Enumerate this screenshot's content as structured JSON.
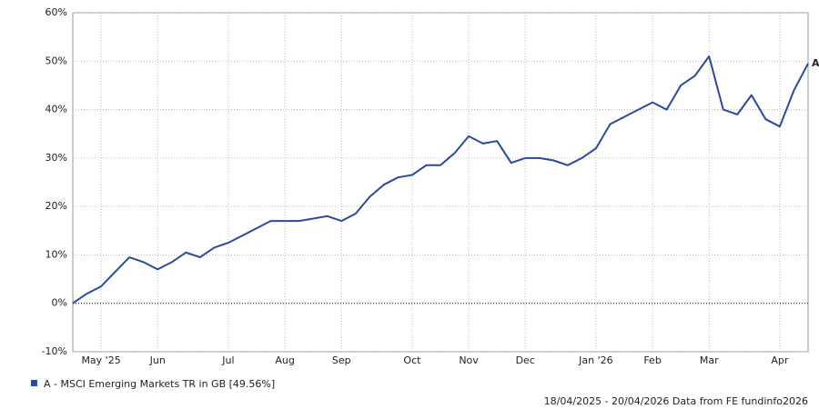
{
  "chart_data": {
    "type": "line",
    "categories": [
      null,
      null,
      "May '25",
      null,
      null,
      null,
      "Jun",
      null,
      null,
      null,
      null,
      "Jul",
      null,
      null,
      null,
      "Aug",
      null,
      null,
      null,
      "Sep",
      null,
      null,
      null,
      null,
      "Oct",
      null,
      null,
      null,
      "Nov",
      null,
      null,
      null,
      "Dec",
      null,
      null,
      null,
      null,
      "Jan '26",
      null,
      null,
      null,
      "Feb",
      null,
      null,
      null,
      "Mar",
      null,
      null,
      null,
      null,
      "Apr",
      null,
      null
    ],
    "series": [
      {
        "name": "A - MSCI Emerging Markets TR in GB [49.56%]",
        "color": "#2a4a9e",
        "values": [
          0,
          2,
          3.5,
          6.5,
          9.5,
          8.5,
          7,
          8.5,
          10.5,
          9.5,
          11.5,
          12.5,
          14,
          15.5,
          17,
          17,
          17,
          17.5,
          18,
          17,
          18.5,
          22,
          24.5,
          26,
          26.5,
          28.5,
          28.5,
          31,
          34.5,
          33,
          33.5,
          29,
          30,
          30,
          29.5,
          28.5,
          30,
          32,
          37,
          38.5,
          40,
          41.5,
          40,
          45,
          47,
          51,
          40,
          39,
          43,
          38,
          36.5,
          44,
          49.5
        ]
      }
    ],
    "end_label": "A",
    "ylim": [
      -10,
      60
    ],
    "yticks": [
      {
        "value": -10,
        "label": "-10%"
      },
      {
        "value": 0,
        "label": "0%"
      },
      {
        "value": 10,
        "label": "10%"
      },
      {
        "value": 20,
        "label": "20%"
      },
      {
        "value": 30,
        "label": "30%"
      },
      {
        "value": 40,
        "label": "40%"
      },
      {
        "value": 50,
        "label": "50%"
      },
      {
        "value": 60,
        "label": "60%"
      }
    ],
    "grid": true,
    "footer": "18/04/2025 - 20/04/2026 Data from FE fundinfo2026"
  }
}
